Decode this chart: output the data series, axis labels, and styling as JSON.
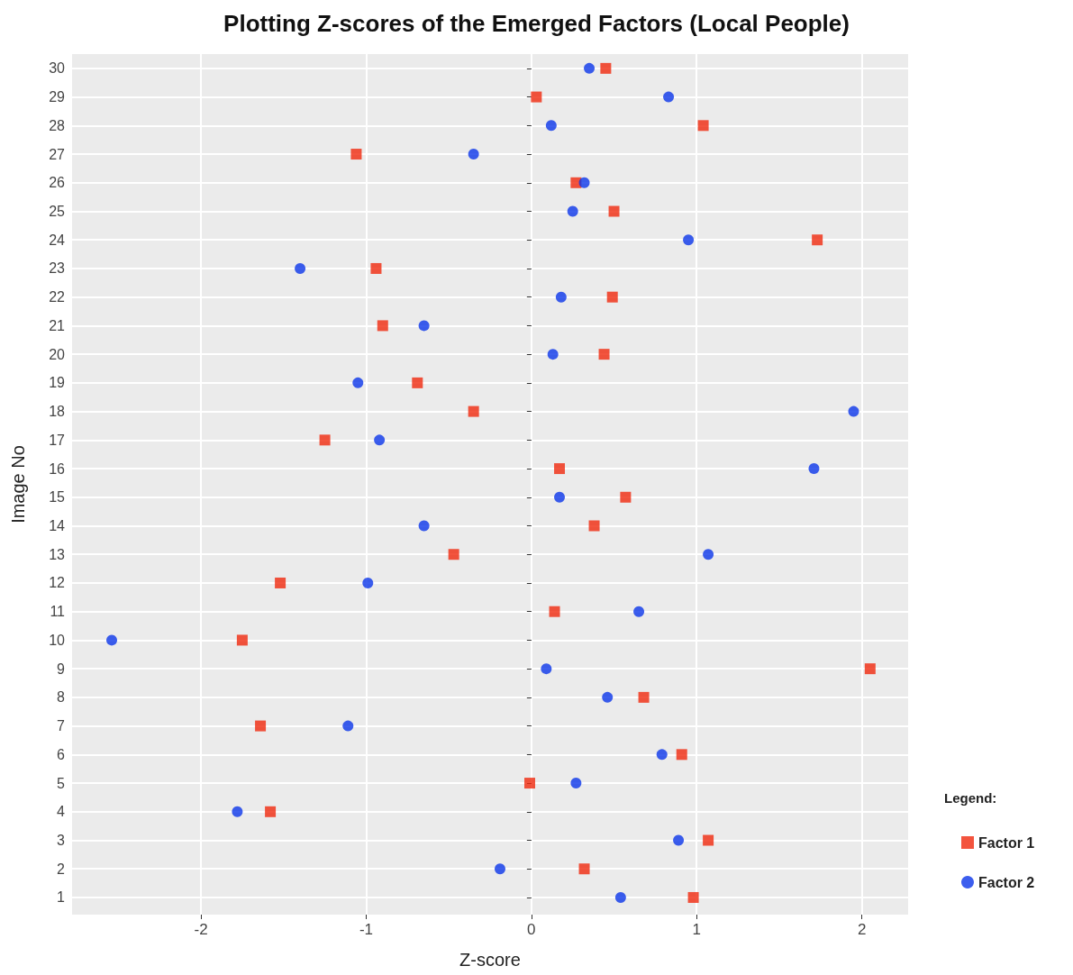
{
  "chart_data": {
    "type": "scatter",
    "title": "Plotting Z-scores of the Emerged Factors (Local People)",
    "xlabel": "Z-score",
    "ylabel": "Image No",
    "legend_title": "Legend:",
    "legend": "bottom right",
    "grid": true,
    "xlim": [
      -2.78,
      2.28
    ],
    "xticks": [
      -2,
      -1,
      0,
      1,
      2
    ],
    "ylim": [
      0.4,
      30.5
    ],
    "yticks": [
      1,
      2,
      3,
      4,
      5,
      6,
      7,
      8,
      9,
      10,
      11,
      12,
      13,
      14,
      15,
      16,
      17,
      18,
      19,
      20,
      21,
      22,
      23,
      24,
      25,
      26,
      27,
      28,
      29,
      30
    ],
    "series": [
      {
        "name": "Factor 1",
        "color": "#f0290e",
        "marker": "square",
        "x": [
          0.98,
          0.32,
          1.07,
          -1.58,
          -0.01,
          0.91,
          -1.64,
          0.68,
          2.05,
          -1.75,
          0.14,
          -1.52,
          -0.47,
          0.38,
          0.57,
          0.17,
          -1.25,
          -0.35,
          -0.69,
          0.44,
          -0.9,
          0.49,
          -0.94,
          1.73,
          0.5,
          0.27,
          -1.06,
          1.04,
          0.03,
          0.45
        ],
        "values": [
          1,
          2,
          3,
          4,
          5,
          6,
          7,
          8,
          9,
          10,
          11,
          12,
          13,
          14,
          15,
          16,
          17,
          18,
          19,
          20,
          21,
          22,
          23,
          24,
          25,
          26,
          27,
          28,
          29,
          30
        ]
      },
      {
        "name": "Factor 2",
        "color": "#0b36ea",
        "marker": "circle",
        "x": [
          0.54,
          -0.19,
          0.89,
          -1.78,
          0.27,
          0.79,
          -1.11,
          0.46,
          0.09,
          -2.54,
          0.65,
          -0.99,
          1.07,
          -0.65,
          0.17,
          1.71,
          -0.92,
          1.95,
          -1.05,
          0.13,
          -0.65,
          0.18,
          -1.4,
          0.95,
          0.25,
          0.32,
          -0.35,
          0.12,
          0.83,
          0.35
        ],
        "values": [
          1,
          2,
          3,
          4,
          5,
          6,
          7,
          8,
          9,
          10,
          11,
          12,
          13,
          14,
          15,
          16,
          17,
          18,
          19,
          20,
          21,
          22,
          23,
          24,
          25,
          26,
          27,
          28,
          29,
          30
        ]
      }
    ]
  }
}
